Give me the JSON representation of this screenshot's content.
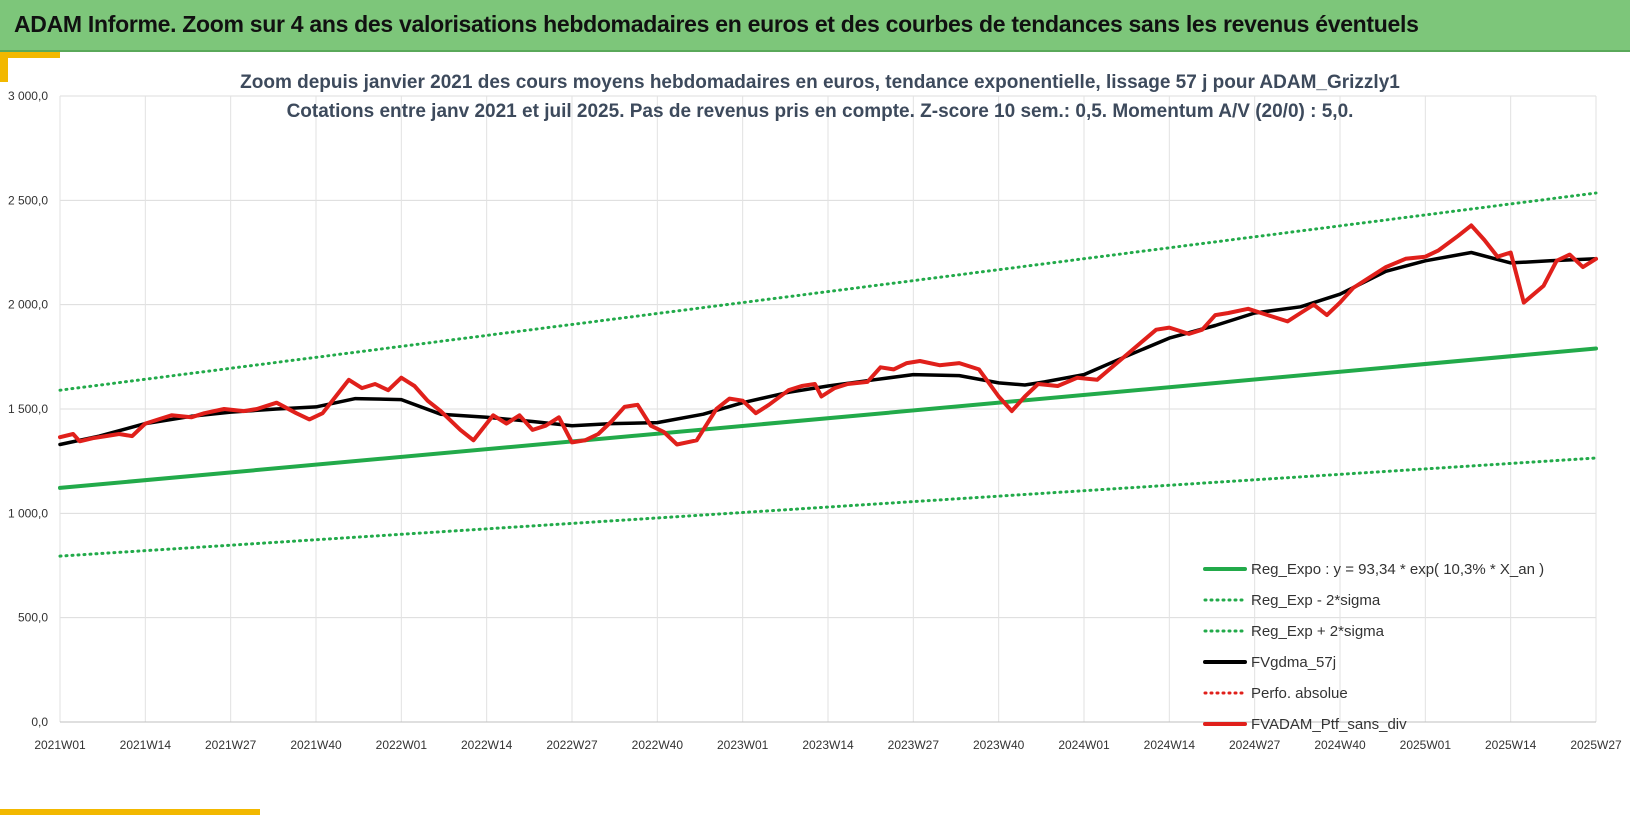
{
  "banner": {
    "title": "ADAM Informe. Zoom sur 4 ans des valorisations hebdomadaires en euros et des courbes de tendances sans les revenus éventuels"
  },
  "chart_data": {
    "type": "line",
    "title": "Zoom depuis janvier 2021 des cours moyens hebdomadaires  en euros, tendance exponentielle, lissage 57 j pour ADAM_Grizzly1",
    "subtitle": "Cotations entre janv 2021 et juil 2025. Pas de revenus pris en compte. Z-score 10 sem.: 0,5. Momentum A/V (20/0) : 5,0.",
    "ylim": [
      0,
      3000
    ],
    "yticks": [
      "0,0",
      "500,0",
      "1 000,0",
      "1 500,0",
      "2 000,0",
      "2 500,0",
      "3 000,0"
    ],
    "xlim": [
      0,
      234
    ],
    "xticks": [
      {
        "x": 0,
        "label": "2021W01"
      },
      {
        "x": 13,
        "label": "2021W14"
      },
      {
        "x": 26,
        "label": "2021W27"
      },
      {
        "x": 39,
        "label": "2021W40"
      },
      {
        "x": 52,
        "label": "2022W01"
      },
      {
        "x": 65,
        "label": "2022W14"
      },
      {
        "x": 78,
        "label": "2022W27"
      },
      {
        "x": 91,
        "label": "2022W40"
      },
      {
        "x": 104,
        "label": "2023W01"
      },
      {
        "x": 117,
        "label": "2023W14"
      },
      {
        "x": 130,
        "label": "2023W27"
      },
      {
        "x": 143,
        "label": "2023W40"
      },
      {
        "x": 156,
        "label": "2024W01"
      },
      {
        "x": 169,
        "label": "2024W14"
      },
      {
        "x": 182,
        "label": "2024W27"
      },
      {
        "x": 195,
        "label": "2024W40"
      },
      {
        "x": 208,
        "label": "2025W01"
      },
      {
        "x": 221,
        "label": "2025W14"
      },
      {
        "x": 234,
        "label": "2025W27"
      }
    ],
    "grid": true,
    "legend_position": "bottom-right",
    "series": [
      {
        "name": "Reg_Expo : y = 93,34 * exp( 10,3% *  X_an )",
        "color": "#22aa4a",
        "style": "solid",
        "x": [
          0,
          234
        ],
        "values": [
          1122,
          1790
        ]
      },
      {
        "name": "Reg_Exp - 2*sigma",
        "color": "#22aa4a",
        "style": "dotted",
        "x": [
          0,
          234
        ],
        "values": [
          795,
          1265
        ]
      },
      {
        "name": "Reg_Exp + 2*sigma",
        "color": "#22aa4a",
        "style": "dotted",
        "x": [
          0,
          234
        ],
        "values": [
          1590,
          2535
        ]
      },
      {
        "name": "FVgdma_57j",
        "color": "#000000",
        "style": "solid",
        "x": [
          0,
          6,
          13,
          20,
          26,
          33,
          39,
          45,
          52,
          58,
          65,
          72,
          78,
          84,
          91,
          98,
          104,
          111,
          117,
          124,
          130,
          137,
          143,
          147,
          150,
          156,
          163,
          169,
          176,
          182,
          189,
          195,
          202,
          208,
          215,
          221,
          227,
          234
        ],
        "values": [
          1330,
          1370,
          1430,
          1465,
          1485,
          1500,
          1510,
          1550,
          1545,
          1475,
          1460,
          1440,
          1420,
          1430,
          1435,
          1475,
          1530,
          1580,
          1610,
          1640,
          1665,
          1660,
          1625,
          1615,
          1630,
          1665,
          1760,
          1840,
          1900,
          1960,
          1990,
          2050,
          2160,
          2210,
          2250,
          2200,
          2210,
          2220
        ]
      },
      {
        "name": "Perfo. absolue",
        "color": "#e0201b",
        "style": "dotted",
        "x": [],
        "values": []
      },
      {
        "name": "FVADAM_Ptf_sans_div",
        "color": "#e0201b",
        "style": "solid",
        "x": [
          0,
          2,
          3,
          5,
          7,
          9,
          11,
          13,
          15,
          17,
          20,
          22,
          25,
          28,
          30,
          33,
          36,
          38,
          40,
          42,
          44,
          46,
          48,
          50,
          52,
          54,
          56,
          58,
          61,
          63,
          66,
          68,
          70,
          72,
          74,
          76,
          78,
          80,
          82,
          84,
          86,
          88,
          90,
          92,
          94,
          97,
          100,
          102,
          104,
          106,
          108,
          111,
          113,
          115,
          116,
          118,
          120,
          123,
          125,
          127,
          129,
          131,
          134,
          137,
          140,
          143,
          145,
          147,
          149,
          152,
          155,
          158,
          161,
          164,
          167,
          169,
          172,
          174,
          176,
          178,
          181,
          184,
          187,
          189,
          191,
          193,
          195,
          197,
          199,
          202,
          205,
          208,
          210,
          213,
          215,
          217,
          219,
          221,
          223,
          226,
          228,
          230,
          232,
          234
        ],
        "values": [
          1365,
          1380,
          1345,
          1360,
          1370,
          1380,
          1370,
          1430,
          1450,
          1470,
          1460,
          1480,
          1500,
          1490,
          1500,
          1530,
          1480,
          1450,
          1480,
          1560,
          1640,
          1600,
          1620,
          1590,
          1650,
          1610,
          1540,
          1490,
          1400,
          1350,
          1470,
          1430,
          1470,
          1400,
          1420,
          1460,
          1340,
          1350,
          1380,
          1440,
          1510,
          1520,
          1420,
          1390,
          1330,
          1350,
          1500,
          1550,
          1540,
          1480,
          1520,
          1590,
          1610,
          1620,
          1560,
          1600,
          1620,
          1630,
          1700,
          1690,
          1720,
          1730,
          1710,
          1720,
          1690,
          1560,
          1490,
          1560,
          1620,
          1610,
          1650,
          1640,
          1720,
          1800,
          1880,
          1890,
          1860,
          1880,
          1950,
          1960,
          1980,
          1950,
          1920,
          1960,
          2000,
          1950,
          2010,
          2080,
          2120,
          2180,
          2220,
          2230,
          2260,
          2330,
          2380,
          2310,
          2230,
          2250,
          2010,
          2090,
          2210,
          2240,
          2180,
          2220
        ]
      }
    ]
  }
}
